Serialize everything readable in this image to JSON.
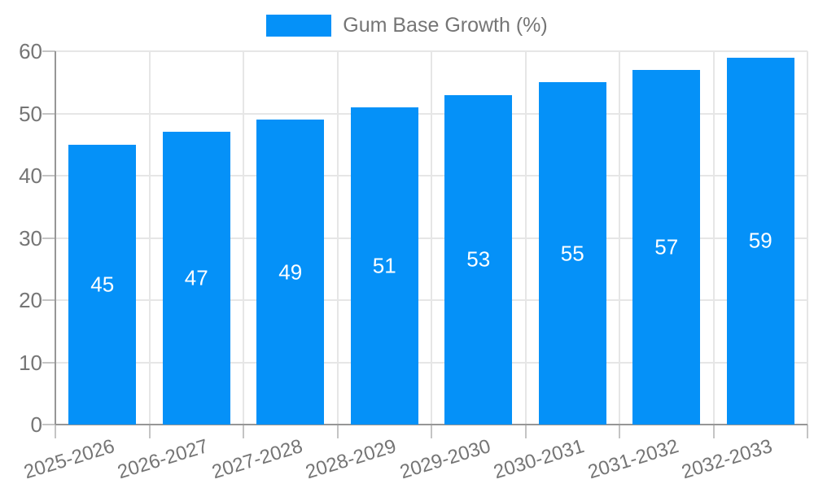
{
  "chart_data": {
    "type": "bar",
    "title": "",
    "xlabel": "",
    "ylabel": "",
    "categories": [
      "2025-2026",
      "2026-2027",
      "2027-2028",
      "2028-2029",
      "2029-2030",
      "2030-2031",
      "2031-2032",
      "2032-2033"
    ],
    "series": [
      {
        "name": "Gum Base Growth (%)",
        "values": [
          45,
          47,
          49,
          51,
          53,
          55,
          57,
          59
        ]
      }
    ],
    "value_label_position": "inside-center",
    "ylim": [
      0,
      60
    ],
    "yticks": [
      0,
      10,
      20,
      30,
      40,
      50,
      60
    ],
    "grid": true,
    "legend_position": "top-center",
    "x_label_rotation_deg": -17
  },
  "colors": {
    "bar": "#0591f8",
    "label_gray": "#757575",
    "gridline": "#e6e6e6",
    "axis_line": "#969696",
    "tick": "#c4c4c4",
    "value_label": "#ffffff",
    "background": "#ffffff"
  }
}
